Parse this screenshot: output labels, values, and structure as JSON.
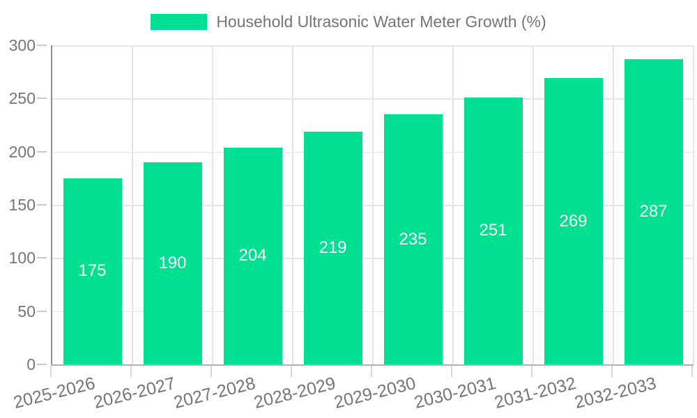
{
  "legend": {
    "label": "Household Ultrasonic Water Meter Growth (%)",
    "swatch_color": "#00E092"
  },
  "chart_data": {
    "type": "bar",
    "title": "Household Ultrasonic Water Meter Growth (%)",
    "categories": [
      "2025-2026",
      "2026-2027",
      "2027-2028",
      "2028-2029",
      "2029-2030",
      "2030-2031",
      "2031-2032",
      "2032-2033"
    ],
    "values": [
      175,
      190,
      204,
      219,
      235,
      251,
      269,
      287
    ],
    "xlabel": "",
    "ylabel": "",
    "ylim": [
      0,
      300
    ],
    "yticks": [
      0,
      50,
      100,
      150,
      200,
      250,
      300
    ],
    "grid": true,
    "legend_position": "top",
    "x_tick_rotation_deg": -14,
    "bar_color": "#00E092",
    "value_label_color": "#ffffff",
    "tick_label_color": "#757575"
  }
}
